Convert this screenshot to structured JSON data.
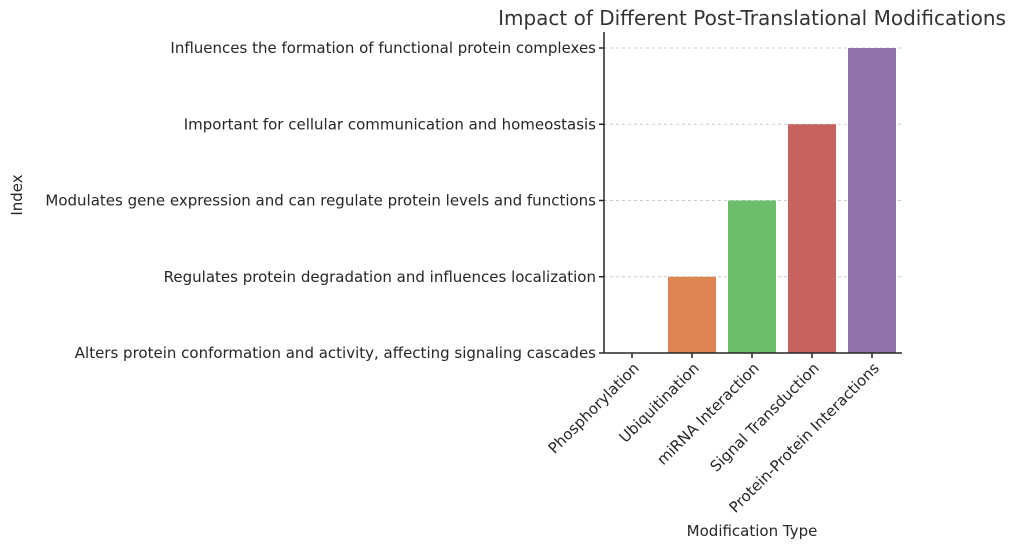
{
  "chart_data": {
    "type": "bar",
    "title": "Impact of Different Post-Translational Modifications",
    "xlabel": "Modification Type",
    "ylabel": "Index",
    "categories": [
      "Phosphorylation",
      "Ubiquitination",
      "miRNA Interaction",
      "Signal Transduction",
      "Protein-Protein Interactions"
    ],
    "yticklabels": [
      "Alters protein conformation and activity, affecting signaling cascades",
      "Regulates protein degradation and influences localization",
      "Modulates gene expression and can regulate protein levels and functions",
      "Important for cellular communication and homeostasis",
      "Influences the formation of functional protein complexes"
    ],
    "values": [
      0,
      1,
      2,
      3,
      4
    ],
    "ylim": [
      0,
      4
    ],
    "colors": [
      "#5b8bd4",
      "#dd8452",
      "#6cbd6a",
      "#c9625f",
      "#9172ad"
    ],
    "grid": "horizontal dashed",
    "legend": "none"
  }
}
